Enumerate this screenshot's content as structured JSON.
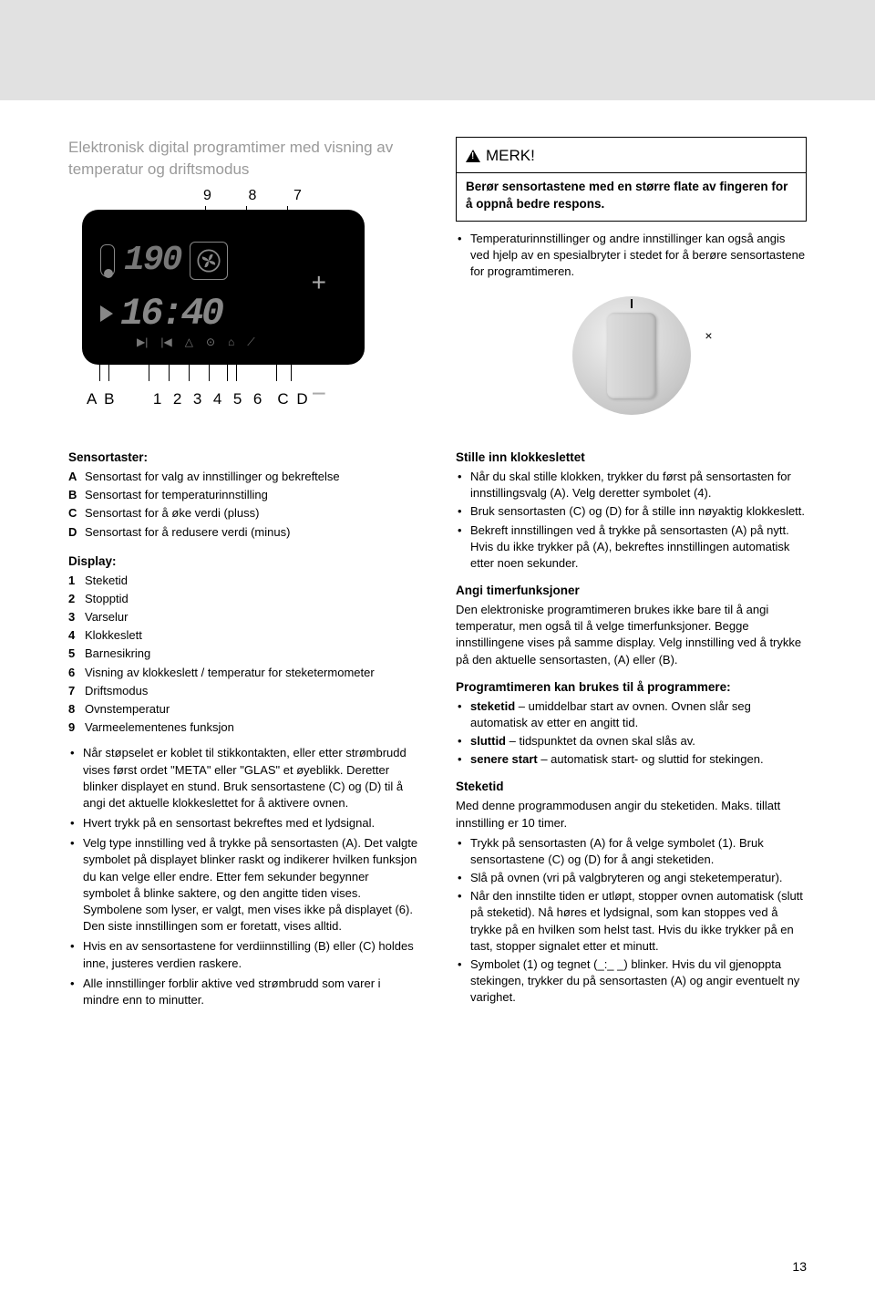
{
  "page_number": "13",
  "left_top": {
    "title": "Elektronisk digital programtimer med visning av temperatur og driftsmodus",
    "callouts_top": [
      "9",
      "8",
      "7"
    ],
    "callouts_bottom_left": "A B",
    "callouts_bottom_nums": [
      "1",
      "2",
      "3",
      "4",
      "5",
      "6"
    ],
    "callouts_bottom_right": "C D",
    "panel": {
      "temp_digits": "190",
      "time_digits": "16:40"
    }
  },
  "right_top": {
    "notice_label": "MERK!",
    "notice_body": "Berør sensortastene med en større flate av fingeren for å oppnå bedre respons.",
    "bullet": "Temperaturinnstillinger og andre innstillinger kan også angis ved hjelp av en spesialbryter i stedet for å berøre sensortastene for programtimeren."
  },
  "left_col": {
    "sensor_heading": "Sensortaster:",
    "sensor_items": [
      {
        "k": "A",
        "v": "Sensortast for valg av innstillinger og bekreftelse"
      },
      {
        "k": "B",
        "v": "Sensortast for temperaturinnstilling"
      },
      {
        "k": "C",
        "v": "Sensortast for å øke verdi (pluss)"
      },
      {
        "k": "D",
        "v": "Sensortast for å redusere verdi (minus)"
      }
    ],
    "display_heading": "Display:",
    "display_items": [
      {
        "k": "1",
        "v": "Steketid"
      },
      {
        "k": "2",
        "v": "Stopptid"
      },
      {
        "k": "3",
        "v": "Varselur"
      },
      {
        "k": "4",
        "v": "Klokkeslett"
      },
      {
        "k": "5",
        "v": "Barnesikring"
      },
      {
        "k": "6",
        "v": "Visning av klokkeslett / temperatur for steketermometer"
      },
      {
        "k": "7",
        "v": "Driftsmodus"
      },
      {
        "k": "8",
        "v": "Ovnstemperatur"
      },
      {
        "k": "9",
        "v": "Varmeelementenes funksjon"
      }
    ],
    "bullets": [
      "Når støpselet er koblet til stikkontakten, eller etter strømbrudd vises først ordet \"META\" eller \"GLAS\" et øyeblikk. Deretter blinker displayet en stund. Bruk sensortastene (C) og (D) til å angi det aktuelle klokkeslettet for å aktivere ovnen.",
      "Hvert trykk på en sensortast bekreftes med et lydsignal.",
      "Velg type innstilling ved å trykke på sensortasten (A). Det valgte symbolet på displayet blinker raskt og indikerer hvilken funksjon du kan velge eller endre. Etter fem sekunder begynner symbolet å blinke saktere, og den angitte tiden vises. Symbolene som lyser, er valgt, men vises ikke på displayet (6). Den siste innstillingen som er foretatt, vises alltid.",
      "Hvis en av sensortastene for verdiinnstilling (B) eller (C) holdes inne, justeres verdien raskere.",
      "Alle innstillinger forblir aktive ved strømbrudd som varer i mindre enn to minutter."
    ]
  },
  "right_col": {
    "clock_heading": "Stille inn klokkeslettet",
    "clock_bullets": [
      "Når du skal stille klokken, trykker du først på sensortasten for innstillingsvalg (A). Velg deretter symbolet (4).",
      "Bruk sensortasten (C) og (D) for å stille inn nøyaktig klokkeslett.",
      "Bekreft innstillingen ved å trykke på sensortasten (A) på nytt. Hvis du ikke trykker på (A), bekreftes innstillingen automatisk etter noen sekunder."
    ],
    "timer_heading": "Angi timerfunksjoner",
    "timer_body": "Den elektroniske programtimeren brukes ikke bare til å angi temperatur, men også til å velge timerfunksjoner. Begge innstillingene vises på samme display. Velg innstilling ved å trykke på den aktuelle sensortasten, (A) eller (B).",
    "program_heading": "Programtimeren kan brukes til å programmere:",
    "program_items": [
      {
        "b": "steketid",
        "t": " – umiddelbar start av ovnen. Ovnen slår seg automatisk av etter en angitt tid."
      },
      {
        "b": "sluttid",
        "t": " – tidspunktet da ovnen skal slås av."
      },
      {
        "b": "senere start",
        "t": " – automatisk start- og sluttid for stekingen."
      }
    ],
    "steketid_heading": "Steketid",
    "steketid_intro": "Med denne programmodusen angir du steketiden. Maks. tillatt innstilling er 10 timer.",
    "steketid_bullets": [
      "Trykk på sensortasten (A) for å velge symbolet (1). Bruk sensortastene (C) og (D) for å angi steketiden.",
      "Slå på ovnen (vri på valgbryteren og angi steketemperatur).",
      "Når den innstilte tiden er utløpt, stopper ovnen automatisk (slutt på steketid). Nå høres et lydsignal, som kan stoppes ved å trykke på en hvilken som helst tast. Hvis du ikke trykker på en tast, stopper signalet etter et minutt.",
      "Symbolet (1) og tegnet (_:_ _) blinker.  Hvis du vil gjenoppta stekingen, trykker du på sensortasten (A) og angir eventuelt ny varighet."
    ]
  }
}
